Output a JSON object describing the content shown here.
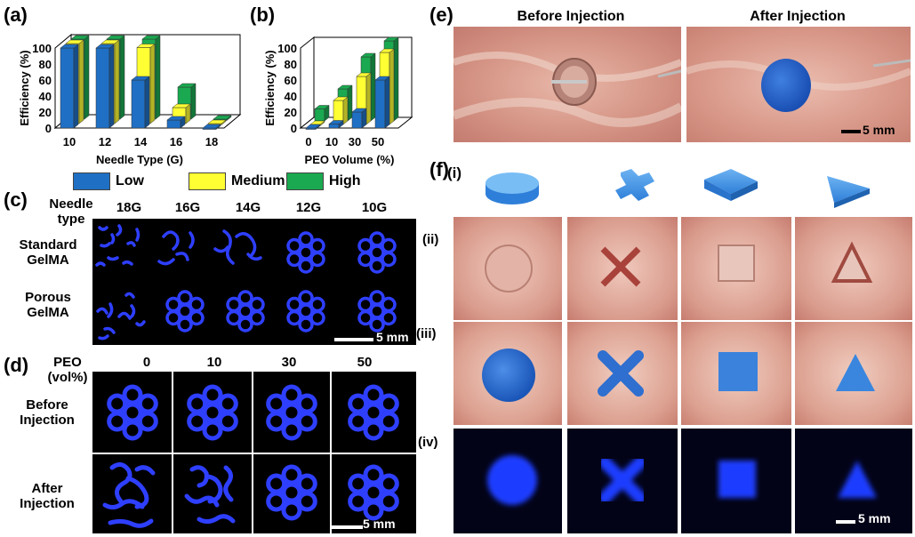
{
  "panels": {
    "a": "(a)",
    "b": "(b)",
    "c": "(c)",
    "d": "(d)",
    "e": "(e)",
    "f": "(f)"
  },
  "colors": {
    "low": "#1f6fc4",
    "medium": "#ffff33",
    "high": "#1aa950",
    "tissue": "#d9a195",
    "fluor_blue": "#2a3cff"
  },
  "legend": {
    "low": "Low",
    "medium": "Medium",
    "high": "High"
  },
  "chart_data": [
    {
      "type": "bar",
      "panel": "a",
      "categories": [
        "10",
        "12",
        "14",
        "16",
        "18"
      ],
      "xlabel": "Needle Type (G)",
      "ylabel": "Efficiency (%)",
      "ylim": [
        0,
        100
      ],
      "yticks": [
        "0",
        "20",
        "40",
        "60",
        "80",
        "100"
      ],
      "series": [
        {
          "name": "Low",
          "values": [
            100,
            100,
            60,
            10,
            0
          ]
        },
        {
          "name": "Medium",
          "values": [
            100,
            100,
            95,
            20,
            0
          ]
        },
        {
          "name": "High",
          "values": [
            100,
            100,
            100,
            40,
            0
          ]
        }
      ]
    },
    {
      "type": "bar",
      "panel": "b",
      "categories": [
        "0",
        "10",
        "30",
        "50"
      ],
      "xlabel": "PEO Volume (%)",
      "ylabel": "Efficiency (%)",
      "ylim": [
        0,
        100
      ],
      "yticks": [
        "0",
        "20",
        "40",
        "60",
        "80",
        "100"
      ],
      "series": [
        {
          "name": "Low",
          "values": [
            0,
            5,
            20,
            60
          ]
        },
        {
          "name": "Medium",
          "values": [
            0,
            30,
            60,
            90
          ]
        },
        {
          "name": "High",
          "values": [
            15,
            40,
            80,
            100
          ]
        }
      ]
    }
  ],
  "panel_c": {
    "header": "Needle\ntype",
    "columns": [
      "18G",
      "16G",
      "14G",
      "12G",
      "10G"
    ],
    "rows": [
      "Standard\nGelMA",
      "Porous\nGelMA"
    ],
    "scale": "5 mm"
  },
  "panel_d": {
    "header": "PEO\n(vol%)",
    "columns": [
      "0",
      "10",
      "30",
      "50"
    ],
    "rows": [
      "Before\nInjection",
      "After\nInjection"
    ],
    "scale": "5 mm"
  },
  "panel_e": {
    "titles": [
      "Before Injection",
      "After Injection"
    ],
    "scale": "5 mm"
  },
  "panel_f": {
    "rows": [
      "(i)",
      "(ii)",
      "(iii)",
      "(iv)"
    ],
    "shapes": [
      "circle-shape",
      "cross-shape",
      "square-shape",
      "triangle-shape"
    ],
    "scale": "5 mm"
  }
}
